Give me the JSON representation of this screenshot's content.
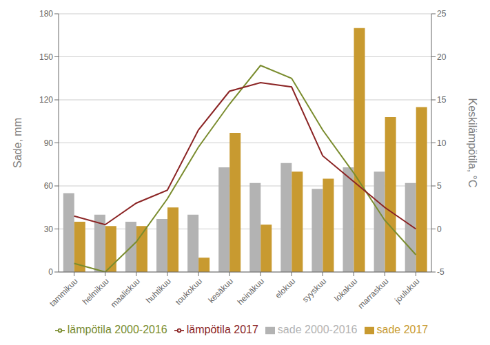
{
  "chart_data": {
    "type": "bar",
    "categories": [
      "tammikuu",
      "helmikuu",
      "maaliskuu",
      "huhtikuu",
      "toukokuu",
      "kesäkuu",
      "heinäkuu",
      "elokuu",
      "syyskuu",
      "lokakuu",
      "marraskuu",
      "joulukuu"
    ],
    "series": [
      {
        "name": "sade 2000-2016",
        "type": "bar",
        "color": "#b3b3b3",
        "values": [
          55,
          40,
          35,
          37,
          40,
          73,
          62,
          76,
          58,
          73,
          70,
          62
        ]
      },
      {
        "name": "sade 2017",
        "type": "bar",
        "color": "#c89a30",
        "values": [
          35,
          32,
          32,
          45,
          10,
          97,
          33,
          70,
          65,
          170,
          108,
          115
        ]
      },
      {
        "name": "lämpötila 2000-2016",
        "type": "line",
        "axis": "y2",
        "color": "#7a8c2e",
        "values": [
          -4.0,
          -5.0,
          -1.5,
          3.5,
          9.5,
          14.5,
          19.0,
          17.5,
          11.5,
          6.5,
          1.0,
          -3.0
        ]
      },
      {
        "name": "lämpötila 2017",
        "type": "line",
        "axis": "y2",
        "color": "#8b2424",
        "values": [
          1.5,
          0.5,
          3.0,
          4.5,
          11.5,
          16.0,
          17.0,
          16.5,
          8.5,
          5.5,
          2.5,
          0.0
        ]
      }
    ],
    "ylabel": "Sade, mm",
    "y2label": "Keskilämpötila, °C",
    "ylim": [
      0,
      180
    ],
    "yticks": [
      0,
      30,
      60,
      90,
      120,
      150,
      180
    ],
    "y2lim": [
      -5,
      25
    ],
    "y2ticks": [
      -5,
      0,
      5,
      10,
      15,
      20,
      25
    ],
    "grid": true,
    "legend": "bottom"
  }
}
